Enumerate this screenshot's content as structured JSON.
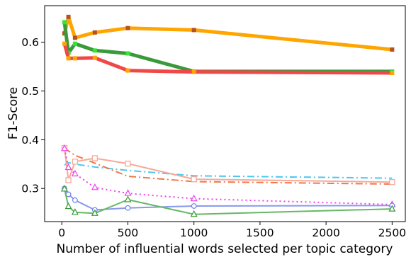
{
  "chart_data": {
    "type": "line",
    "xlabel": "Number of influential words selected per topic category",
    "ylabel": "F1-Score",
    "xlim": [
      -130,
      2600
    ],
    "ylim": [
      0.232,
      0.675
    ],
    "x_ticks": [
      0,
      500,
      1000,
      1500,
      2000,
      2500
    ],
    "y_ticks": [
      0.3,
      0.4,
      0.5,
      0.6
    ],
    "grid": false,
    "legend": "none",
    "series": [
      {
        "color": "#ffa500",
        "line": "solid",
        "width": 5,
        "marker": "square",
        "marker_color": "#b5531f",
        "x": [
          20,
          50,
          100,
          250,
          500,
          1000,
          2500
        ],
        "y": [
          0.618,
          0.652,
          0.609,
          0.62,
          0.629,
          0.625,
          0.585
        ]
      },
      {
        "color": "#3a9a3a",
        "line": "solid",
        "width": 5,
        "marker": "square",
        "marker_color": "#33e633",
        "x": [
          20,
          50,
          100,
          250,
          500,
          1000,
          2500
        ],
        "y": [
          0.641,
          0.578,
          0.597,
          0.583,
          0.577,
          0.54,
          0.54
        ]
      },
      {
        "color": "#f04848",
        "line": "solid",
        "width": 5,
        "marker": "square",
        "marker_color": "#ffa500",
        "x": [
          20,
          50,
          100,
          250,
          500,
          1000,
          2500
        ],
        "y": [
          0.597,
          0.567,
          0.567,
          0.568,
          0.542,
          0.539,
          0.537
        ]
      },
      {
        "color": "#4cc7f0",
        "line": "dashdot",
        "width": 2,
        "marker": "none",
        "marker_color": "",
        "x": [
          20,
          50,
          100,
          250,
          500,
          1000,
          2500
        ],
        "y": [
          0.348,
          0.353,
          0.35,
          0.344,
          0.337,
          0.326,
          0.321
        ]
      },
      {
        "color": "#f07848",
        "line": "dashdot",
        "width": 2,
        "marker": "none",
        "marker_color": "",
        "x": [
          20,
          50,
          100,
          250,
          500,
          1000,
          2500
        ],
        "y": [
          0.383,
          0.377,
          0.368,
          0.352,
          0.325,
          0.314,
          0.309
        ]
      },
      {
        "color": "#f8a898",
        "line": "solid",
        "width": 2,
        "marker": "open-square",
        "marker_color": "#f8a898",
        "x": [
          20,
          50,
          100,
          250,
          500,
          1000,
          2500
        ],
        "y": [
          0.383,
          0.317,
          0.355,
          0.362,
          0.351,
          0.319,
          0.313
        ]
      },
      {
        "color": "#f040f0",
        "line": "dotted",
        "width": 2,
        "marker": "open-triangle",
        "marker_color": "#f040f0",
        "x": [
          20,
          50,
          100,
          250,
          500,
          1000,
          2500
        ],
        "y": [
          0.382,
          0.343,
          0.33,
          0.302,
          0.29,
          0.279,
          0.267
        ]
      },
      {
        "color": "#8899ee",
        "line": "solid",
        "width": 2,
        "marker": "open-circle",
        "marker_color": "#7080e8",
        "x": [
          20,
          50,
          100,
          250,
          500,
          1000,
          2500
        ],
        "y": [
          0.3,
          0.288,
          0.276,
          0.256,
          0.26,
          0.264,
          0.265
        ]
      },
      {
        "color": "#66b866",
        "line": "solid",
        "width": 2,
        "marker": "open-triangle",
        "marker_color": "#3a9a3a",
        "x": [
          20,
          50,
          100,
          250,
          500,
          1000,
          2500
        ],
        "y": [
          0.299,
          0.263,
          0.251,
          0.249,
          0.277,
          0.247,
          0.258
        ]
      }
    ]
  }
}
